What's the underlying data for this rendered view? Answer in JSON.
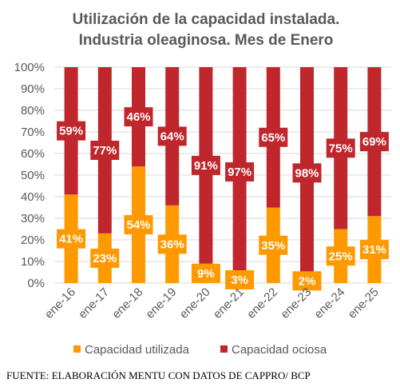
{
  "chart_data": {
    "type": "bar",
    "stacked": true,
    "title_lines": [
      "Utilización de la capacidad instalada.",
      "Industria oleaginosa. Mes de Enero"
    ],
    "categories": [
      "ene-16",
      "ene-17",
      "ene-18",
      "ene-19",
      "ene-20",
      "ene-21",
      "ene-22",
      "ene-23",
      "ene-24",
      "ene-25"
    ],
    "series": [
      {
        "name": "Capacidad utilizada",
        "color": "#ff9900",
        "values": [
          41,
          23,
          54,
          36,
          9,
          3,
          35,
          2,
          25,
          31
        ]
      },
      {
        "name": "Capacidad ociosa",
        "color": "#c0272d",
        "values": [
          59,
          77,
          46,
          64,
          91,
          97,
          65,
          98,
          75,
          69
        ]
      }
    ],
    "yticks": [
      "0%",
      "10%",
      "20%",
      "30%",
      "40%",
      "50%",
      "60%",
      "70%",
      "80%",
      "90%",
      "100%"
    ],
    "ylim": [
      0,
      100
    ],
    "value_suffix": "%",
    "grid": true,
    "legend_position": "bottom"
  },
  "source": "FUENTE: ELABORACIÓN MENTU CON DATOS DE CAPPRO/ BCP"
}
